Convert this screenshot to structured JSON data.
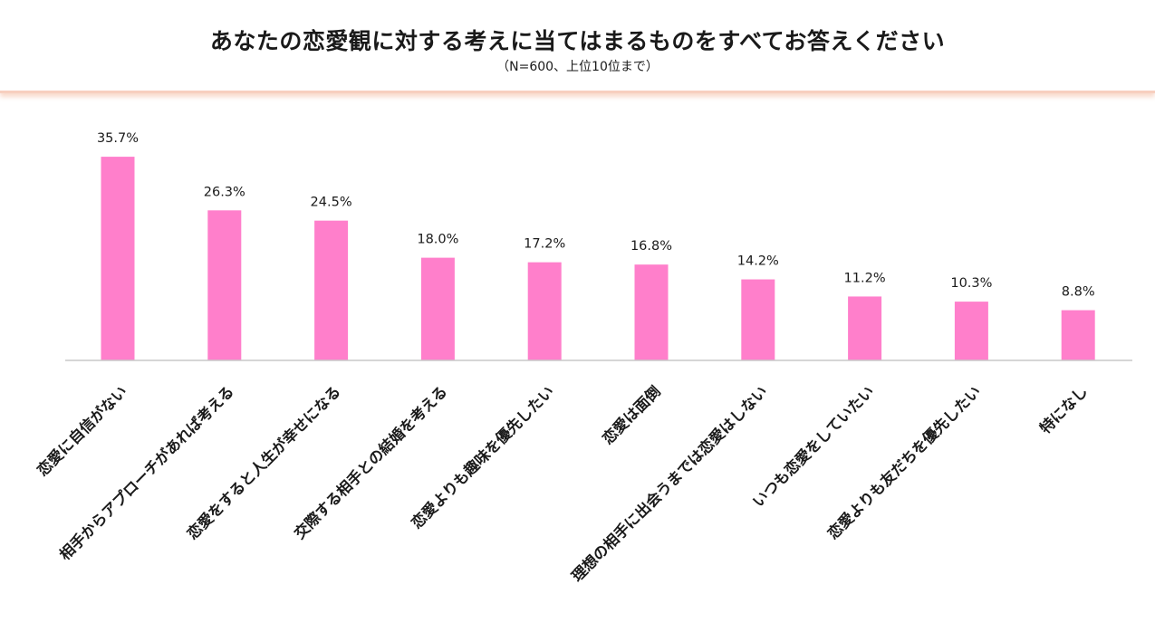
{
  "header": {
    "title": "あなたの恋愛観に対する考えに当てはまるものをすべてお答えください",
    "subtitle": "（N=600、上位10位まで）"
  },
  "colors": {
    "bar": "#ff7fcb",
    "axis": "#c8c8c8",
    "header_line": "#f7cfbf"
  },
  "chart_data": {
    "type": "bar",
    "title": "あなたの恋愛観に対する考えに当てはまるものをすべてお答えください",
    "subtitle": "（N=600、上位10位まで）",
    "categories": [
      "恋愛に自信がない",
      "相手からアプローチがあれば考える",
      "恋愛をすると人生が幸せになる",
      "交際する相手との結婚を考える",
      "恋愛よりも趣味を優先したい",
      "恋愛は面倒",
      "理想の相手に出会うまでは恋愛はしない",
      "いつも恋愛をしていたい",
      "恋愛よりも友だちを優先したい",
      "特になし"
    ],
    "values": [
      35.7,
      26.3,
      24.5,
      18.0,
      17.2,
      16.8,
      14.2,
      11.2,
      10.3,
      8.8
    ],
    "value_labels": [
      "35.7%",
      "26.3%",
      "24.5%",
      "18.0%",
      "17.2%",
      "16.8%",
      "14.2%",
      "11.2%",
      "10.3%",
      "8.8%"
    ],
    "ylim": [
      0,
      36
    ],
    "grid": false,
    "legend": "none"
  }
}
